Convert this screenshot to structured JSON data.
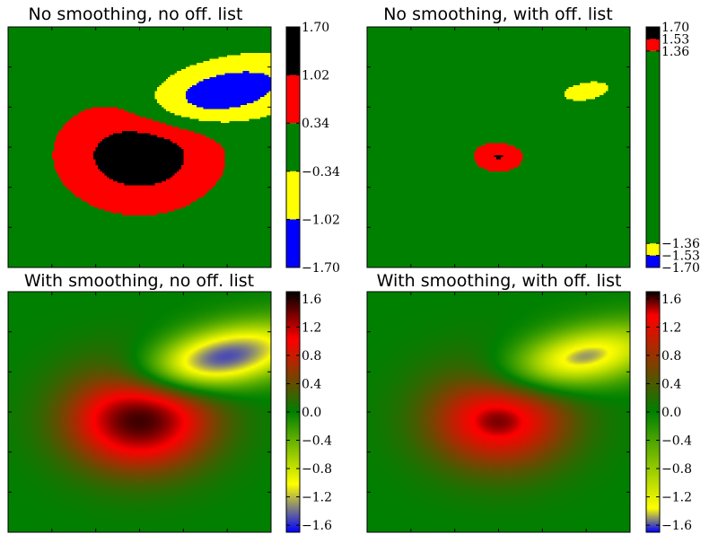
{
  "chart_data": [
    {
      "type": "heatmap",
      "title": "No smoothing, no off. list",
      "interpolation": "nearest",
      "discrete": true,
      "colorbar": {
        "colors": [
          "#0000ff",
          "#ffff00",
          "#008000",
          "#ff0000",
          "#000000"
        ],
        "boundaries": [
          -1.7,
          -1.02,
          -0.34,
          0.34,
          1.02,
          1.7
        ],
        "ticks": [
          -1.7,
          -1.02,
          -0.34,
          0.34,
          1.02,
          1.7
        ],
        "tick_labels": [
          "−1.70",
          "−1.02",
          "−0.34",
          "0.34",
          "1.02",
          "1.70"
        ]
      },
      "field": {
        "positive_peak": 1.6,
        "negative_peak": -1.6,
        "lobe_scale": 1.0
      }
    },
    {
      "type": "heatmap",
      "title": "No smoothing, with off. list",
      "interpolation": "nearest",
      "discrete": true,
      "colorbar": {
        "colors": [
          "#0000ff",
          "#ffff00",
          "#008000",
          "#ff0000",
          "#000000"
        ],
        "boundaries": [
          -1.7,
          -1.53,
          -1.36,
          1.36,
          1.53,
          1.7
        ],
        "ticks": [
          -1.7,
          -1.53,
          -1.36,
          1.36,
          1.53,
          1.7
        ],
        "tick_labels": [
          "−1.70",
          "−1.53",
          "−1.36",
          "1.36",
          "1.53",
          "1.70"
        ]
      },
      "field": {
        "positive_peak": 1.6,
        "negative_peak": -1.6,
        "lobe_scale": 1.0
      }
    },
    {
      "type": "heatmap",
      "title": "With smoothing, no off. list",
      "interpolation": "smooth",
      "discrete": false,
      "colorbar": {
        "range": [
          -1.7,
          1.7
        ],
        "color_nodes": [
          {
            "value": -1.7,
            "color": "#0000ff"
          },
          {
            "value": -1.02,
            "color": "#ffff00"
          },
          {
            "value": 0.0,
            "color": "#008000"
          },
          {
            "value": 1.02,
            "color": "#ff0000"
          },
          {
            "value": 1.7,
            "color": "#000000"
          }
        ],
        "ticks": [
          -1.6,
          -1.2,
          -0.8,
          -0.4,
          0.0,
          0.4,
          0.8,
          1.2,
          1.6
        ],
        "tick_labels": [
          "−1.6",
          "−1.2",
          "−0.8",
          "−0.4",
          "0.0",
          "0.4",
          "0.8",
          "1.2",
          "1.6"
        ]
      },
      "field": {
        "positive_peak": 1.6,
        "negative_peak": -1.6,
        "lobe_scale": 1.0
      }
    },
    {
      "type": "heatmap",
      "title": "With smoothing, with off. list",
      "interpolation": "smooth",
      "discrete": false,
      "colorbar": {
        "range": [
          -1.7,
          1.7
        ],
        "color_nodes": [
          {
            "value": -1.7,
            "color": "#0000ff"
          },
          {
            "value": -1.36,
            "color": "#ffff00"
          },
          {
            "value": 0.0,
            "color": "#008000"
          },
          {
            "value": 1.36,
            "color": "#ff0000"
          },
          {
            "value": 1.7,
            "color": "#000000"
          }
        ],
        "ticks": [
          -1.6,
          -1.2,
          -0.8,
          -0.4,
          0.0,
          0.4,
          0.8,
          1.2,
          1.6
        ],
        "tick_labels": [
          "−1.6",
          "−1.2",
          "−0.8",
          "−0.4",
          "0.0",
          "0.4",
          "0.8",
          "1.2",
          "1.6"
        ]
      },
      "field": {
        "positive_peak": 1.6,
        "negative_peak": -1.6,
        "lobe_scale": 1.0
      }
    }
  ]
}
